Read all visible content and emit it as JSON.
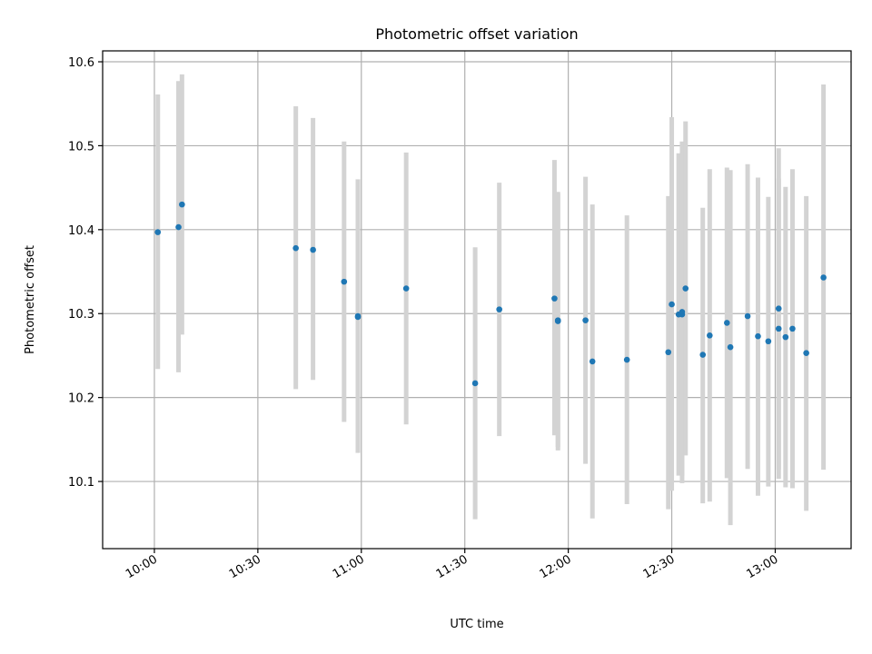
{
  "chart_data": {
    "type": "scatter",
    "title": "Photometric offset variation",
    "xlabel": "UTC time",
    "ylabel": "Photometric offset",
    "x_is_time": true,
    "xlim": [
      "09:45",
      "13:22"
    ],
    "ylim": [
      10.02,
      10.613
    ],
    "x_ticks": [
      "10:00",
      "10:30",
      "11:00",
      "11:30",
      "12:00",
      "12:30",
      "13:00"
    ],
    "y_ticks": [
      10.1,
      10.2,
      10.3,
      10.4,
      10.5,
      10.6
    ],
    "y_tick_labels": [
      "10.1",
      "10.2",
      "10.3",
      "10.4",
      "10.5",
      "10.6"
    ],
    "grid": true,
    "colors": {
      "points": "#1f77b4",
      "error_bars": "#d3d3d3",
      "grid": "#b0b0b0"
    },
    "points": [
      {
        "x": "10:01",
        "y": 10.397,
        "y_low": 10.234,
        "y_high": 10.561
      },
      {
        "x": "10:07",
        "y": 10.403,
        "y_low": 10.23,
        "y_high": 10.577
      },
      {
        "x": "10:08",
        "y": 10.43,
        "y_low": 10.275,
        "y_high": 10.585
      },
      {
        "x": "10:41",
        "y": 10.378,
        "y_low": 10.21,
        "y_high": 10.547
      },
      {
        "x": "10:46",
        "y": 10.376,
        "y_low": 10.221,
        "y_high": 10.533
      },
      {
        "x": "10:55",
        "y": 10.338,
        "y_low": 10.171,
        "y_high": 10.505
      },
      {
        "x": "10:59",
        "y": 10.297,
        "y_low": 10.143,
        "y_high": 10.452
      },
      {
        "x": "10:59",
        "y": 10.296,
        "y_low": 10.134,
        "y_high": 10.46
      },
      {
        "x": "11:13",
        "y": 10.33,
        "y_low": 10.168,
        "y_high": 10.492
      },
      {
        "x": "11:33",
        "y": 10.217,
        "y_low": 10.055,
        "y_high": 10.379
      },
      {
        "x": "11:40",
        "y": 10.305,
        "y_low": 10.154,
        "y_high": 10.456
      },
      {
        "x": "11:56",
        "y": 10.318,
        "y_low": 10.155,
        "y_high": 10.483
      },
      {
        "x": "11:57",
        "y": 10.292,
        "y_low": 10.141,
        "y_high": 10.445
      },
      {
        "x": "11:57",
        "y": 10.291,
        "y_low": 10.137,
        "y_high": 10.443
      },
      {
        "x": "12:05",
        "y": 10.292,
        "y_low": 10.121,
        "y_high": 10.463
      },
      {
        "x": "12:07",
        "y": 10.243,
        "y_low": 10.056,
        "y_high": 10.43
      },
      {
        "x": "12:17",
        "y": 10.245,
        "y_low": 10.073,
        "y_high": 10.417
      },
      {
        "x": "12:29",
        "y": 10.254,
        "y_low": 10.067,
        "y_high": 10.44
      },
      {
        "x": "12:30",
        "y": 10.311,
        "y_low": 10.089,
        "y_high": 10.534
      },
      {
        "x": "12:32",
        "y": 10.299,
        "y_low": 10.107,
        "y_high": 10.491
      },
      {
        "x": "12:33",
        "y": 10.299,
        "y_low": 10.107,
        "y_high": 10.491
      },
      {
        "x": "12:33",
        "y": 10.302,
        "y_low": 10.098,
        "y_high": 10.505
      },
      {
        "x": "12:34",
        "y": 10.33,
        "y_low": 10.131,
        "y_high": 10.529
      },
      {
        "x": "12:39",
        "y": 10.251,
        "y_low": 10.074,
        "y_high": 10.426
      },
      {
        "x": "12:41",
        "y": 10.274,
        "y_low": 10.076,
        "y_high": 10.472
      },
      {
        "x": "12:46",
        "y": 10.289,
        "y_low": 10.104,
        "y_high": 10.474
      },
      {
        "x": "12:47",
        "y": 10.26,
        "y_low": 10.048,
        "y_high": 10.471
      },
      {
        "x": "12:52",
        "y": 10.297,
        "y_low": 10.115,
        "y_high": 10.478
      },
      {
        "x": "12:55",
        "y": 10.273,
        "y_low": 10.083,
        "y_high": 10.462
      },
      {
        "x": "12:58",
        "y": 10.267,
        "y_low": 10.094,
        "y_high": 10.439
      },
      {
        "x": "13:01",
        "y": 10.306,
        "y_low": 10.114,
        "y_high": 10.497
      },
      {
        "x": "13:01",
        "y": 10.282,
        "y_low": 10.103,
        "y_high": 10.461
      },
      {
        "x": "13:03",
        "y": 10.272,
        "y_low": 10.093,
        "y_high": 10.451
      },
      {
        "x": "13:05",
        "y": 10.282,
        "y_low": 10.092,
        "y_high": 10.472
      },
      {
        "x": "13:09",
        "y": 10.253,
        "y_low": 10.065,
        "y_high": 10.44
      },
      {
        "x": "13:14",
        "y": 10.343,
        "y_low": 10.114,
        "y_high": 10.573
      }
    ]
  }
}
